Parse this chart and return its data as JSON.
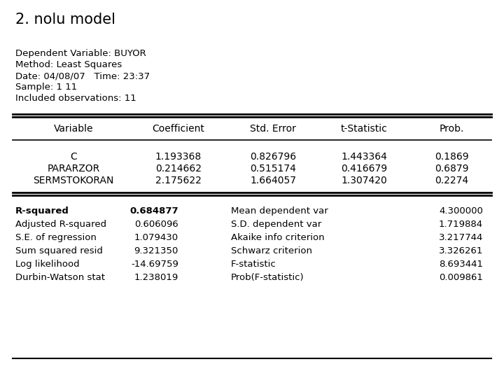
{
  "title": "2. nolu model",
  "header_info": [
    "Dependent Variable: BUYOR",
    "Method: Least Squares",
    "Date: 04/08/07   Time: 23:37",
    "Sample: 1 11",
    "Included observations: 11"
  ],
  "col_headers": [
    "Variable",
    "Coefficient",
    "Std. Error",
    "t-Statistic",
    "Prob."
  ],
  "variables": [
    [
      "C",
      "1.193368",
      "0.826796",
      "1.443364",
      "0.1869"
    ],
    [
      "PARARZOR",
      "0.214662",
      "0.515174",
      "0.416679",
      "0.6879"
    ],
    [
      "SERMSTOKORAN",
      "2.175622",
      "1.664057",
      "1.307420",
      "0.2274"
    ]
  ],
  "stats_left": [
    [
      "R-squared",
      "0.684877",
      true
    ],
    [
      "Adjusted R-squared",
      "0.606096",
      false
    ],
    [
      "S.E. of regression",
      "1.079430",
      false
    ],
    [
      "Sum squared resid",
      "9.321350",
      false
    ],
    [
      "Log likelihood",
      "-14.69759",
      false
    ],
    [
      "Durbin-Watson stat",
      "1.238019",
      false
    ]
  ],
  "stats_right": [
    [
      "Mean dependent var",
      "4.300000"
    ],
    [
      "S.D. dependent var",
      "1.719884"
    ],
    [
      "Akaike info criterion",
      "3.217744"
    ],
    [
      "Schwarz criterion",
      "3.326261"
    ],
    [
      "F-statistic",
      "8.693441"
    ],
    [
      "Prob(F-statistic)",
      "0.009861"
    ]
  ],
  "bg_color": "#ffffff",
  "text_color": "#000000"
}
